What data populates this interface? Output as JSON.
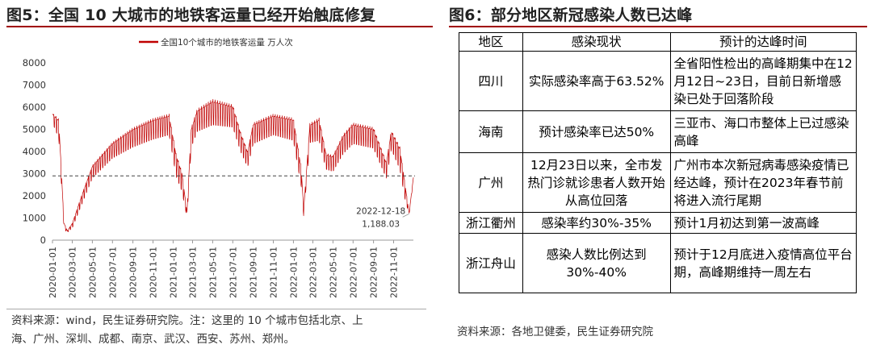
{
  "left_panel": {
    "title": "图5：全国 10 大城市的地铁客运量已经开始触底修复",
    "source_line1": "资料来源：wind，民生证券研究院。注：这里的 10 个城市包括北京、上",
    "source_line2": "海、广州、深圳、成都、南京、武汉、西安、苏州、郑州。"
  },
  "chart_data": {
    "type": "line",
    "title": "",
    "series": [
      {
        "name": "全国10个城市的地铁客运量 万人次",
        "color": "#c00000"
      }
    ],
    "ylim": [
      0,
      8000
    ],
    "yticks": [
      "0",
      "1000",
      "2000",
      "3000",
      "4000",
      "5000",
      "6000",
      "7000",
      "8000"
    ],
    "xticks": [
      "2020-01-01",
      "2020-03-01",
      "2020-05-01",
      "2020-07-01",
      "2020-09-01",
      "2020-11-01",
      "2021-01-01",
      "2021-03-01",
      "2021-05-01",
      "2021-07-01",
      "2021-09-01",
      "2021-11-01",
      "2022-01-01",
      "2022-03-01",
      "2022-05-01",
      "2022-07-01",
      "2022-09-01",
      "2022-11-01"
    ],
    "reference_line": 2900,
    "annotation": {
      "date": "2022-12-18",
      "value_label": "1,188.03",
      "value": 1188.03
    },
    "anchors": [
      [
        "2020-01-01",
        5600,
        300
      ],
      [
        "2020-01-20",
        5200,
        600
      ],
      [
        "2020-02-05",
        700,
        200
      ],
      [
        "2020-02-15",
        400,
        50
      ],
      [
        "2020-03-01",
        700,
        150
      ],
      [
        "2020-04-01",
        2000,
        300
      ],
      [
        "2020-05-01",
        3200,
        400
      ],
      [
        "2020-07-01",
        4200,
        500
      ],
      [
        "2020-09-01",
        4800,
        600
      ],
      [
        "2020-11-01",
        5200,
        650
      ],
      [
        "2020-12-20",
        5400,
        650
      ],
      [
        "2021-01-10",
        3600,
        700
      ],
      [
        "2021-01-28",
        2800,
        600
      ],
      [
        "2021-02-12",
        1200,
        200
      ],
      [
        "2021-02-25",
        4800,
        600
      ],
      [
        "2021-03-15",
        5600,
        700
      ],
      [
        "2021-05-01",
        6000,
        800
      ],
      [
        "2021-07-01",
        5800,
        700
      ],
      [
        "2021-07-25",
        4600,
        600
      ],
      [
        "2021-08-15",
        3800,
        500
      ],
      [
        "2021-09-01",
        5000,
        650
      ],
      [
        "2021-11-01",
        5400,
        650
      ],
      [
        "2022-01-01",
        5200,
        700
      ],
      [
        "2022-01-25",
        3000,
        600
      ],
      [
        "2022-02-01",
        1300,
        200
      ],
      [
        "2022-02-20",
        5000,
        600
      ],
      [
        "2022-03-20",
        5200,
        700
      ],
      [
        "2022-04-10",
        3700,
        500
      ],
      [
        "2022-05-01",
        3600,
        500
      ],
      [
        "2022-06-01",
        4500,
        600
      ],
      [
        "2022-07-01",
        5000,
        650
      ],
      [
        "2022-09-01",
        4800,
        650
      ],
      [
        "2022-10-10",
        3300,
        500
      ],
      [
        "2022-10-25",
        4700,
        600
      ],
      [
        "2022-11-20",
        3900,
        700
      ],
      [
        "2022-12-05",
        2400,
        500
      ],
      [
        "2022-12-18",
        1200,
        50
      ],
      [
        "2022-12-31",
        2800,
        100
      ]
    ]
  },
  "right_panel": {
    "title": "图6：部分地区新冠感染人数已达峰",
    "source": "资料来源：各地卫健委，民生证券研究院",
    "table": {
      "headers": [
        "地区",
        "感染现状",
        "预计的达峰时间"
      ],
      "rows": [
        {
          "region": "四川",
          "status": "实际感染率高于63.52%",
          "peak": "全省阳性检出的高峰期集中在12月12日~23日，目前日新增感染已处于回落阶段"
        },
        {
          "region": "海南",
          "status": "预计感染率已达50%",
          "peak": "三亚市、海口市整体上已过感染高峰"
        },
        {
          "region": "广州",
          "status": "12月23日以来，全市发热门诊就诊患者人数开始从高位回落",
          "peak": "广州市本次新冠病毒感染疫情已经达峰，预计在2023年春节前将进入流行尾期"
        },
        {
          "region": "浙江衢州",
          "status": "感染率约30%-35%",
          "peak": "预计1月初达到第一波高峰"
        },
        {
          "region": "浙江舟山",
          "status": "感染人数比例达到30%-40%",
          "peak": "预计于12月底进入疫情高位平台期，高峰期维持一周左右"
        }
      ]
    }
  }
}
